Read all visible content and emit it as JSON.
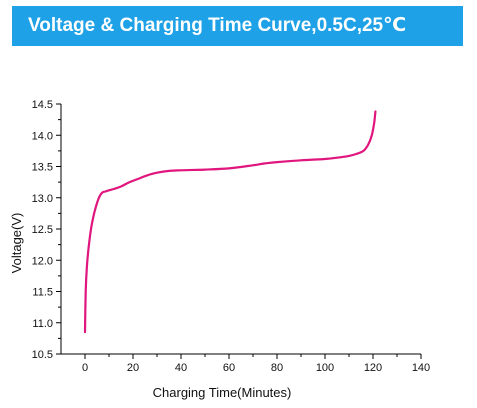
{
  "header": {
    "title": "Voltage & Charging Time Curve,0.5C,25℃"
  },
  "colors": {
    "banner": "#1ea1e6",
    "curve": "#e0157d",
    "axis": "#000000"
  },
  "chart_data": {
    "type": "line",
    "title": "Voltage & Charging Time Curve,0.5C,25℃",
    "xlabel": "Charging Time(Minutes)",
    "ylabel": "Voltage(V)",
    "xlim": [
      -10,
      140
    ],
    "ylim": [
      10.5,
      14.5
    ],
    "xticks": [
      0,
      20,
      40,
      60,
      80,
      100,
      120,
      140
    ],
    "yticks": [
      10.5,
      11.0,
      11.5,
      12.0,
      12.5,
      13.0,
      13.5,
      14.0,
      14.5
    ],
    "grid": false,
    "legend": "none",
    "series": [
      {
        "x": [
          0,
          0.3,
          0.8,
          1.5,
          2.5,
          3.5,
          4.5,
          5.5,
          6.5,
          7.5,
          8.5,
          10,
          12,
          15,
          18,
          22,
          26,
          30,
          35,
          40,
          50,
          60,
          70,
          75,
          80,
          90,
          100,
          105,
          110,
          113,
          116,
          118,
          119.5,
          120.5,
          121
        ],
        "y": [
          10.85,
          11.5,
          11.9,
          12.2,
          12.5,
          12.7,
          12.85,
          12.97,
          13.05,
          13.09,
          13.1,
          13.12,
          13.14,
          13.18,
          13.24,
          13.3,
          13.36,
          13.4,
          13.43,
          13.44,
          13.45,
          13.47,
          13.52,
          13.55,
          13.57,
          13.6,
          13.62,
          13.64,
          13.67,
          13.7,
          13.75,
          13.85,
          14.0,
          14.2,
          14.38
        ]
      }
    ]
  }
}
